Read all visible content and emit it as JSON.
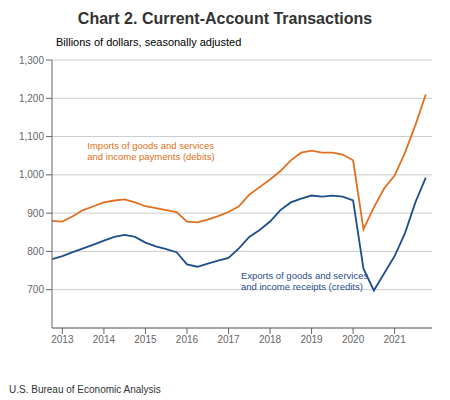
{
  "chart_data": {
    "type": "line",
    "title": "Chart 2. Current-Account Transactions",
    "subtitle": "Billions of dollars, seasonally adjusted",
    "footer": "U.S. Bureau of Economic Analysis",
    "x": [
      2012.75,
      2013.0,
      2013.25,
      2013.5,
      2013.75,
      2014.0,
      2014.25,
      2014.5,
      2014.75,
      2015.0,
      2015.25,
      2015.5,
      2015.75,
      2016.0,
      2016.25,
      2016.5,
      2016.75,
      2017.0,
      2017.25,
      2017.5,
      2017.75,
      2018.0,
      2018.25,
      2018.5,
      2018.75,
      2019.0,
      2019.25,
      2019.5,
      2019.75,
      2020.0,
      2020.25,
      2020.5,
      2020.75,
      2021.0,
      2021.25,
      2021.5,
      2021.75
    ],
    "series": [
      {
        "color": "#e07020",
        "values": [
          880,
          878,
          892,
          908,
          918,
          928,
          933,
          936,
          928,
          918,
          913,
          908,
          903,
          878,
          876,
          883,
          892,
          903,
          918,
          948,
          968,
          988,
          1010,
          1038,
          1058,
          1063,
          1058,
          1058,
          1053,
          1038,
          858,
          915,
          965,
          998,
          1058,
          1130,
          1210
        ]
      },
      {
        "color": "#1f4e8c",
        "values": [
          780,
          788,
          798,
          808,
          818,
          828,
          838,
          843,
          838,
          823,
          813,
          806,
          798,
          766,
          760,
          768,
          776,
          783,
          808,
          838,
          856,
          878,
          908,
          928,
          938,
          946,
          943,
          946,
          943,
          933,
          755,
          698,
          743,
          788,
          848,
          928,
          993
        ]
      }
    ],
    "annotations": [
      {
        "text": "Imports of goods and services\nand income payments (debits)",
        "x": 2013.6,
        "y": 1030,
        "color": "#e07020"
      },
      {
        "text": "Exports of goods and services\nand income receipts (credits)",
        "x": 2017.3,
        "y": 755,
        "color": "#1f4e8c"
      }
    ],
    "xlim": [
      2012.75,
      2021.9
    ],
    "xticks": [
      2013,
      2014,
      2015,
      2016,
      2017,
      2018,
      2019,
      2020,
      2021
    ],
    "ylim": [
      600,
      1300
    ],
    "yticks": [
      700,
      800,
      900,
      {
        "value": 1000,
        "label": "1,000"
      },
      {
        "value": 1100,
        "label": "1,100"
      },
      {
        "value": 1200,
        "label": "1,200"
      },
      {
        "value": 1300,
        "label": "1,300"
      }
    ],
    "grid": true
  }
}
